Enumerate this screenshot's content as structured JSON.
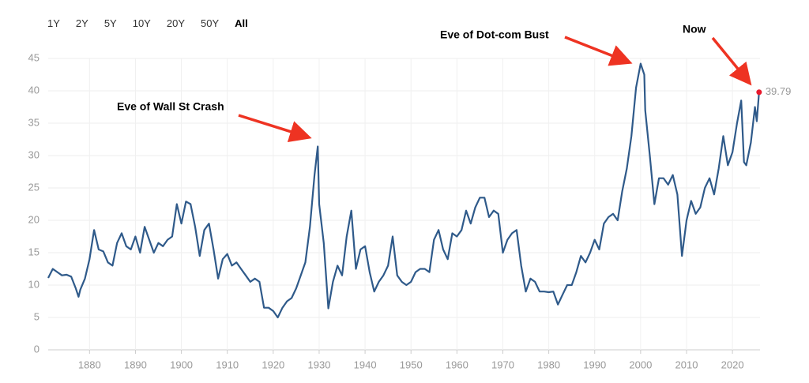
{
  "range_buttons": [
    "1Y",
    "2Y",
    "5Y",
    "10Y",
    "20Y",
    "50Y",
    "All"
  ],
  "chart_data": {
    "type": "line",
    "color": "#2f5a8a",
    "grid": true,
    "annotations": [
      "Eve of Wall St Crash",
      "Eve of Dot-com Bust",
      "Now"
    ],
    "xlim": [
      1871,
      2026
    ],
    "xticks": [
      1880,
      1890,
      1900,
      1910,
      1920,
      1930,
      1940,
      1950,
      1960,
      1970,
      1980,
      1990,
      2000,
      2010,
      2020
    ],
    "ylim": [
      0,
      45
    ],
    "yticks": [
      0,
      5,
      10,
      15,
      20,
      25,
      30,
      35,
      40,
      45
    ],
    "x": [
      1871,
      1872,
      1873,
      1874,
      1875,
      1876,
      1877,
      1877.6,
      1878,
      1879,
      1880,
      1881,
      1882,
      1883,
      1884,
      1885,
      1886,
      1887,
      1888,
      1889,
      1890,
      1891,
      1892,
      1893,
      1894,
      1895,
      1896,
      1897,
      1898,
      1899,
      1900,
      1901,
      1902,
      1903,
      1904,
      1905,
      1906,
      1907,
      1908,
      1909,
      1910,
      1911,
      1912,
      1913,
      1914,
      1915,
      1916,
      1917,
      1918,
      1919,
      1920,
      1921,
      1922,
      1923,
      1924,
      1925,
      1926,
      1927,
      1928,
      1929,
      1929.7,
      1930,
      1931,
      1932,
      1933,
      1934,
      1935,
      1936,
      1937,
      1938,
      1939,
      1940,
      1941,
      1942,
      1943,
      1944,
      1945,
      1946,
      1947,
      1948,
      1949,
      1950,
      1951,
      1952,
      1953,
      1954,
      1955,
      1956,
      1957,
      1958,
      1959,
      1960,
      1961,
      1962,
      1963,
      1964,
      1965,
      1966,
      1967,
      1968,
      1969,
      1970,
      1971,
      1972,
      1973,
      1974,
      1975,
      1976,
      1977,
      1978,
      1979,
      1980,
      1981,
      1982,
      1983,
      1984,
      1985,
      1986,
      1987,
      1988,
      1989,
      1990,
      1991,
      1992,
      1993,
      1994,
      1995,
      1996,
      1997,
      1998,
      1999,
      2000,
      2000.8,
      2001,
      2002,
      2003,
      2004,
      2005,
      2006,
      2007,
      2008,
      2009,
      2010,
      2011,
      2012,
      2013,
      2014,
      2015,
      2016,
      2017,
      2018,
      2019,
      2020,
      2021,
      2021.9,
      2022.5,
      2023,
      2024,
      2024.9,
      2025.3,
      2025.8
    ],
    "values": [
      11.1,
      12.5,
      12.0,
      11.5,
      11.6,
      11.3,
      9.5,
      8.2,
      9.3,
      11.0,
      14.0,
      18.5,
      15.5,
      15.2,
      13.5,
      13.0,
      16.5,
      18.0,
      16.0,
      15.5,
      17.5,
      15.0,
      19.0,
      17.0,
      15.0,
      16.5,
      16.0,
      17.0,
      17.5,
      22.5,
      19.5,
      22.9,
      22.5,
      19.0,
      14.5,
      18.5,
      19.5,
      15.5,
      11.0,
      14.0,
      14.8,
      13.0,
      13.5,
      12.5,
      11.5,
      10.5,
      11.0,
      10.5,
      6.5,
      6.5,
      6.0,
      5.0,
      6.5,
      7.5,
      8.0,
      9.5,
      11.5,
      13.5,
      19.0,
      27.0,
      31.4,
      22.5,
      16.5,
      6.4,
      10.5,
      13.0,
      11.5,
      17.5,
      21.5,
      12.5,
      15.5,
      16.0,
      12.0,
      9.0,
      10.5,
      11.5,
      13.0,
      17.5,
      11.5,
      10.5,
      10.0,
      10.5,
      12.0,
      12.5,
      12.5,
      12.0,
      17.0,
      18.5,
      15.5,
      14.0,
      18.0,
      17.5,
      18.5,
      21.5,
      19.5,
      22.0,
      23.5,
      23.5,
      20.5,
      21.5,
      21.0,
      15.0,
      17.0,
      18.0,
      18.5,
      13.0,
      9.0,
      11.0,
      10.5,
      9.0,
      9.0,
      8.9,
      9.0,
      7.0,
      8.5,
      10.0,
      10.0,
      12.0,
      14.5,
      13.5,
      15.0,
      17.0,
      15.5,
      19.5,
      20.5,
      21.0,
      20.0,
      24.5,
      28.0,
      33.0,
      40.5,
      44.2,
      42.5,
      37.0,
      30.0,
      22.5,
      26.5,
      26.5,
      25.5,
      27.0,
      24.0,
      14.5,
      20.0,
      23.0,
      21.0,
      22.0,
      25.0,
      26.5,
      24.0,
      28.0,
      33.0,
      28.5,
      30.5,
      35.0,
      38.5,
      29.0,
      28.5,
      32.0,
      37.5,
      35.3,
      39.79
    ]
  }
}
